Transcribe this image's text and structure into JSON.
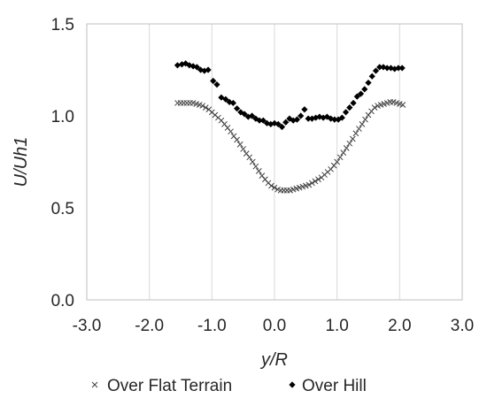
{
  "chart_data": {
    "type": "scatter",
    "xlabel": "y/R",
    "ylabel": "U/Uh1",
    "xlim": [
      -3.0,
      3.0
    ],
    "ylim": [
      0.0,
      1.5
    ],
    "xticks": [
      -3.0,
      -2.0,
      -1.0,
      0.0,
      1.0,
      2.0,
      3.0
    ],
    "yticks": [
      0.0,
      0.5,
      1.0,
      1.5
    ],
    "xtick_labels": [
      "-3.0",
      "-2.0",
      "-1.0",
      "0.0",
      "1.0",
      "2.0",
      "3.0"
    ],
    "ytick_labels": [
      "0.0",
      "0.5",
      "1.0",
      "1.5"
    ],
    "grid": "vertical",
    "legend_position": "bottom",
    "series": [
      {
        "name": "Over Flat Terrain",
        "marker": "x",
        "color": "#404040",
        "points": [
          [
            -1.55,
            1.07
          ],
          [
            -1.5,
            1.07
          ],
          [
            -1.45,
            1.07
          ],
          [
            -1.4,
            1.07
          ],
          [
            -1.35,
            1.07
          ],
          [
            -1.3,
            1.07
          ],
          [
            -1.25,
            1.065
          ],
          [
            -1.2,
            1.06
          ],
          [
            -1.15,
            1.055
          ],
          [
            -1.1,
            1.045
          ],
          [
            -1.05,
            1.035
          ],
          [
            -1.0,
            1.02
          ],
          [
            -0.95,
            1.005
          ],
          [
            -0.9,
            0.99
          ],
          [
            -0.85,
            0.975
          ],
          [
            -0.8,
            0.955
          ],
          [
            -0.75,
            0.935
          ],
          [
            -0.7,
            0.915
          ],
          [
            -0.65,
            0.89
          ],
          [
            -0.6,
            0.87
          ],
          [
            -0.55,
            0.845
          ],
          [
            -0.5,
            0.82
          ],
          [
            -0.45,
            0.795
          ],
          [
            -0.4,
            0.775
          ],
          [
            -0.35,
            0.75
          ],
          [
            -0.3,
            0.725
          ],
          [
            -0.25,
            0.7
          ],
          [
            -0.2,
            0.675
          ],
          [
            -0.15,
            0.655
          ],
          [
            -0.1,
            0.635
          ],
          [
            -0.05,
            0.62
          ],
          [
            0.0,
            0.61
          ],
          [
            0.05,
            0.6
          ],
          [
            0.1,
            0.595
          ],
          [
            0.15,
            0.595
          ],
          [
            0.2,
            0.595
          ],
          [
            0.25,
            0.595
          ],
          [
            0.3,
            0.6
          ],
          [
            0.35,
            0.605
          ],
          [
            0.4,
            0.61
          ],
          [
            0.45,
            0.615
          ],
          [
            0.5,
            0.62
          ],
          [
            0.55,
            0.625
          ],
          [
            0.6,
            0.635
          ],
          [
            0.65,
            0.645
          ],
          [
            0.7,
            0.655
          ],
          [
            0.75,
            0.665
          ],
          [
            0.8,
            0.68
          ],
          [
            0.85,
            0.695
          ],
          [
            0.9,
            0.71
          ],
          [
            0.95,
            0.73
          ],
          [
            1.0,
            0.75
          ],
          [
            1.05,
            0.775
          ],
          [
            1.1,
            0.8
          ],
          [
            1.15,
            0.825
          ],
          [
            1.2,
            0.85
          ],
          [
            1.25,
            0.875
          ],
          [
            1.3,
            0.905
          ],
          [
            1.35,
            0.93
          ],
          [
            1.4,
            0.955
          ],
          [
            1.45,
            0.98
          ],
          [
            1.5,
            1.005
          ],
          [
            1.55,
            1.025
          ],
          [
            1.6,
            1.045
          ],
          [
            1.65,
            1.055
          ],
          [
            1.7,
            1.06
          ],
          [
            1.75,
            1.065
          ],
          [
            1.8,
            1.07
          ],
          [
            1.85,
            1.075
          ],
          [
            1.9,
            1.075
          ],
          [
            1.95,
            1.07
          ],
          [
            2.0,
            1.065
          ],
          [
            2.05,
            1.06
          ]
        ]
      },
      {
        "name": "Over Hill",
        "marker": "diamond",
        "color": "#000000",
        "points": [
          [
            -1.55,
            1.275
          ],
          [
            -1.48,
            1.28
          ],
          [
            -1.42,
            1.285
          ],
          [
            -1.36,
            1.275
          ],
          [
            -1.3,
            1.27
          ],
          [
            -1.24,
            1.265
          ],
          [
            -1.18,
            1.25
          ],
          [
            -1.12,
            1.245
          ],
          [
            -1.06,
            1.25
          ],
          [
            -0.98,
            1.19
          ],
          [
            -0.92,
            1.17
          ],
          [
            -0.85,
            1.1
          ],
          [
            -0.78,
            1.09
          ],
          [
            -0.72,
            1.075
          ],
          [
            -0.66,
            1.07
          ],
          [
            -0.6,
            1.04
          ],
          [
            -0.54,
            1.02
          ],
          [
            -0.48,
            1.01
          ],
          [
            -0.42,
            0.995
          ],
          [
            -0.36,
            1.0
          ],
          [
            -0.3,
            0.985
          ],
          [
            -0.24,
            0.975
          ],
          [
            -0.18,
            0.975
          ],
          [
            -0.12,
            0.96
          ],
          [
            -0.06,
            0.955
          ],
          [
            0.0,
            0.96
          ],
          [
            0.06,
            0.955
          ],
          [
            0.12,
            0.94
          ],
          [
            0.18,
            0.965
          ],
          [
            0.24,
            0.985
          ],
          [
            0.3,
            0.975
          ],
          [
            0.36,
            0.98
          ],
          [
            0.42,
            1.0
          ],
          [
            0.48,
            1.035
          ],
          [
            0.54,
            0.985
          ],
          [
            0.6,
            0.985
          ],
          [
            0.66,
            0.99
          ],
          [
            0.72,
            0.995
          ],
          [
            0.78,
            0.99
          ],
          [
            0.84,
            0.995
          ],
          [
            0.9,
            0.985
          ],
          [
            0.96,
            0.98
          ],
          [
            1.02,
            0.98
          ],
          [
            1.08,
            0.99
          ],
          [
            1.14,
            1.02
          ],
          [
            1.2,
            1.045
          ],
          [
            1.26,
            1.07
          ],
          [
            1.32,
            1.105
          ],
          [
            1.38,
            1.12
          ],
          [
            1.44,
            1.145
          ],
          [
            1.5,
            1.18
          ],
          [
            1.56,
            1.215
          ],
          [
            1.62,
            1.245
          ],
          [
            1.68,
            1.265
          ],
          [
            1.74,
            1.265
          ],
          [
            1.8,
            1.26
          ],
          [
            1.86,
            1.26
          ],
          [
            1.92,
            1.255
          ],
          [
            1.98,
            1.26
          ],
          [
            2.04,
            1.26
          ]
        ]
      }
    ]
  }
}
